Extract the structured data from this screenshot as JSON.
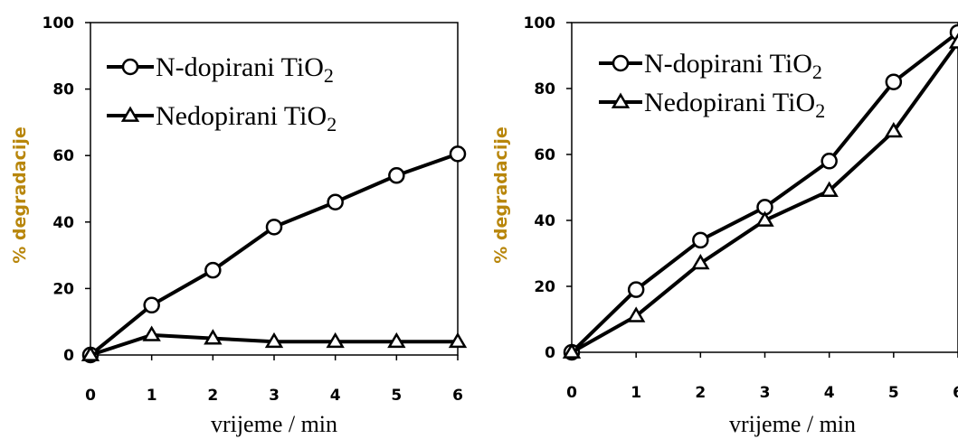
{
  "chart_data": [
    {
      "type": "line",
      "xlabel": "vrijeme / min",
      "ylabel": "% degradacije",
      "xlim": [
        0,
        6
      ],
      "ylim": [
        0,
        100
      ],
      "xticks": [
        "0",
        "1",
        "2",
        "3",
        "4",
        "5",
        "6"
      ],
      "yticks": [
        "0",
        "20",
        "40",
        "60",
        "80",
        "100"
      ],
      "legend_position": "top-left",
      "grid": false,
      "x": [
        0,
        1,
        2,
        3,
        4,
        5,
        6
      ],
      "series": [
        {
          "name": "N-dopirani TiO2",
          "marker": "circle",
          "values": [
            0,
            15,
            25.5,
            38.5,
            46,
            54,
            60.5
          ]
        },
        {
          "name": "Nedopirani TiO2",
          "marker": "triangle",
          "values": [
            0,
            6,
            5,
            4,
            4,
            4,
            4
          ]
        }
      ]
    },
    {
      "type": "line",
      "xlabel": "vrijeme / min",
      "ylabel": "% degradacije",
      "xlim": [
        0,
        6
      ],
      "ylim": [
        0,
        100
      ],
      "xticks": [
        "0",
        "1",
        "2",
        "3",
        "4",
        "5",
        "6"
      ],
      "yticks": [
        "0",
        "20",
        "40",
        "60",
        "80",
        "100"
      ],
      "legend_position": "top-left",
      "grid": false,
      "x": [
        0,
        1,
        2,
        3,
        4,
        5,
        6
      ],
      "series": [
        {
          "name": "N-dopirani TiO2",
          "marker": "circle",
          "values": [
            0,
            19,
            34,
            44,
            58,
            82,
            97
          ]
        },
        {
          "name": "Nedopirani TiO2",
          "marker": "triangle",
          "values": [
            0,
            11,
            27,
            40,
            49,
            67,
            94
          ]
        }
      ]
    }
  ]
}
